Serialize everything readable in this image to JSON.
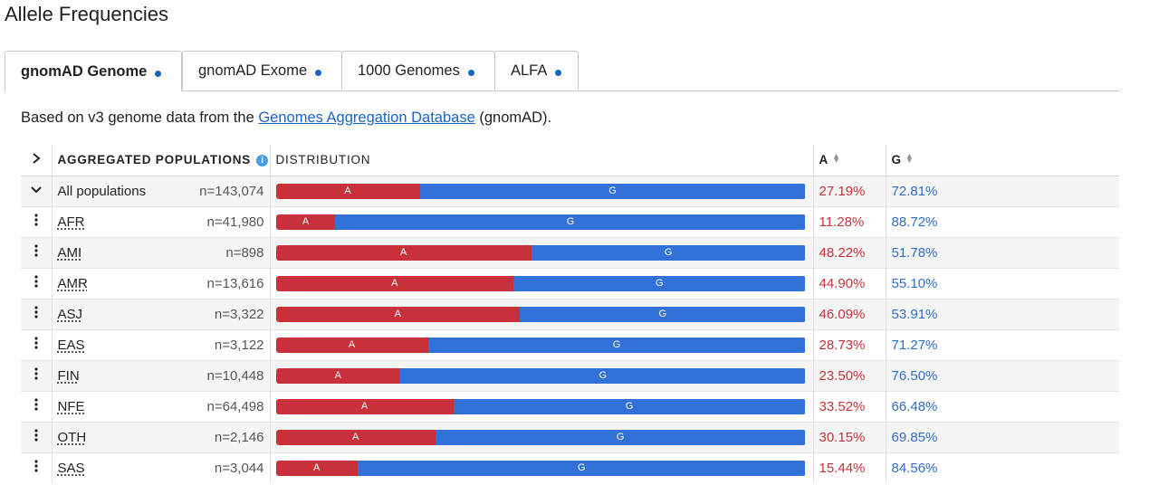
{
  "title": "Allele Frequencies",
  "tabs": [
    {
      "label": "gnomAD Genome",
      "active": true
    },
    {
      "label": "gnomAD Exome",
      "active": false
    },
    {
      "label": "1000 Genomes",
      "active": false
    },
    {
      "label": "ALFA",
      "active": false
    }
  ],
  "description": {
    "prefix": "Based on v3 genome data from the ",
    "link": "Genomes Aggregation Database",
    "suffix": " (gnomAD)."
  },
  "table": {
    "headers": {
      "expand": ">",
      "population": "AGGREGATED POPULATIONS",
      "distribution": "DISTRIBUTION",
      "allele_a": "A",
      "allele_g": "G"
    },
    "rows": [
      {
        "population": "All populations",
        "n": "n=143,074",
        "a_freq": 27.19,
        "a_label": "27.19%",
        "g_label": "72.81%",
        "control": "chevron-down"
      },
      {
        "population": "AFR",
        "n": "n=41,980",
        "a_freq": 11.28,
        "a_label": "11.28%",
        "g_label": "88.72%",
        "control": "more"
      },
      {
        "population": "AMI",
        "n": "n=898",
        "a_freq": 48.22,
        "a_label": "48.22%",
        "g_label": "51.78%",
        "control": "more"
      },
      {
        "population": "AMR",
        "n": "n=13,616",
        "a_freq": 44.9,
        "a_label": "44.90%",
        "g_label": "55.10%",
        "control": "more"
      },
      {
        "population": "ASJ",
        "n": "n=3,322",
        "a_freq": 46.09,
        "a_label": "46.09%",
        "g_label": "53.91%",
        "control": "more"
      },
      {
        "population": "EAS",
        "n": "n=3,122",
        "a_freq": 28.73,
        "a_label": "28.73%",
        "g_label": "71.27%",
        "control": "more"
      },
      {
        "population": "FIN",
        "n": "n=10,448",
        "a_freq": 23.5,
        "a_label": "23.50%",
        "g_label": "76.50%",
        "control": "more"
      },
      {
        "population": "NFE",
        "n": "n=64,498",
        "a_freq": 33.52,
        "a_label": "33.52%",
        "g_label": "66.48%",
        "control": "more"
      },
      {
        "population": "OTH",
        "n": "n=2,146",
        "a_freq": 30.15,
        "a_label": "30.15%",
        "g_label": "69.85%",
        "control": "more"
      },
      {
        "population": "SAS",
        "n": "n=3,044",
        "a_freq": 15.44,
        "a_label": "15.44%",
        "g_label": "84.56%",
        "control": "more"
      }
    ],
    "allele_labels": {
      "a": "A",
      "g": "G"
    },
    "colors": {
      "a": "#c9313a",
      "g": "#3272d8"
    }
  }
}
